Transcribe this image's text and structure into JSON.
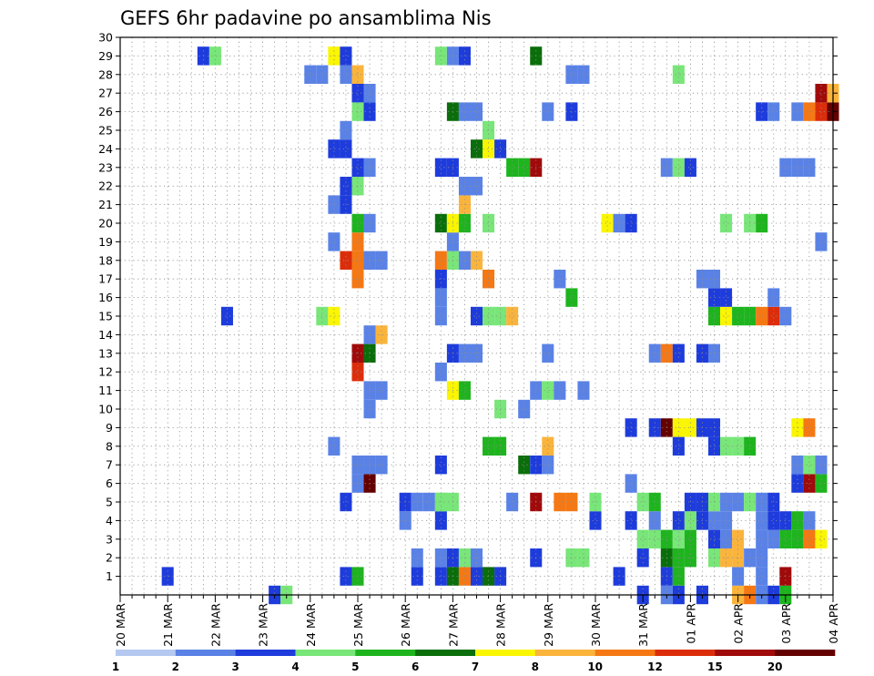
{
  "chart_data": {
    "type": "heatmap",
    "title": "GEFS 6hr padavine po ansamblima Nis",
    "xlabel": "",
    "ylabel": "",
    "x_tick_labels": [
      "20 MAR",
      "21 MAR",
      "22 MAR",
      "23 MAR",
      "24 MAR",
      "25 MAR",
      "26 MAR",
      "27 MAR",
      "28 MAR",
      "29 MAR",
      "30 MAR",
      "31 MAR",
      "01 APR",
      "02 APR",
      "03 APR",
      "04 APR"
    ],
    "y_tick_labels": [
      "1",
      "2",
      "3",
      "4",
      "5",
      "6",
      "7",
      "8",
      "9",
      "10",
      "11",
      "12",
      "13",
      "14",
      "15",
      "16",
      "17",
      "18",
      "19",
      "20",
      "21",
      "22",
      "23",
      "24",
      "25",
      "26",
      "27",
      "28",
      "29",
      "30"
    ],
    "x_range_steps": [
      0,
      60
    ],
    "y_range": [
      0,
      30
    ],
    "steps_per_day": 4,
    "grid": "dotted",
    "legend": {
      "placement": "bottom",
      "labels": [
        "1",
        "2",
        "3",
        "4",
        "5",
        "6",
        "7",
        "8",
        "10",
        "12",
        "15",
        "20"
      ],
      "colors": [
        "#b4c8f0",
        "#5a82e6",
        "#1e3cdc",
        "#78e678",
        "#1eb41e",
        "#0a6e0a",
        "#faf500",
        "#fab43c",
        "#f57814",
        "#dc2d0a",
        "#a00a0a",
        "#640000"
      ]
    },
    "cells": [
      [
        13,
        0,
        2
      ],
      [
        14,
        0,
        3
      ],
      [
        44,
        0,
        2
      ],
      [
        46,
        0,
        1
      ],
      [
        47,
        0,
        2
      ],
      [
        49,
        0,
        2
      ],
      [
        52,
        0,
        7
      ],
      [
        53,
        0,
        8
      ],
      [
        54,
        0,
        1
      ],
      [
        55,
        0,
        2
      ],
      [
        56,
        0,
        4
      ],
      [
        4,
        1,
        2
      ],
      [
        19,
        1,
        2
      ],
      [
        20,
        1,
        4
      ],
      [
        25,
        1,
        2
      ],
      [
        27,
        1,
        2
      ],
      [
        28,
        1,
        5
      ],
      [
        29,
        1,
        8
      ],
      [
        30,
        1,
        2
      ],
      [
        31,
        1,
        5
      ],
      [
        32,
        1,
        2
      ],
      [
        42,
        1,
        2
      ],
      [
        46,
        1,
        2
      ],
      [
        47,
        1,
        4
      ],
      [
        52,
        1,
        1
      ],
      [
        54,
        1,
        1
      ],
      [
        56,
        1,
        10
      ],
      [
        25,
        2,
        1
      ],
      [
        27,
        2,
        1
      ],
      [
        28,
        2,
        2
      ],
      [
        29,
        2,
        3
      ],
      [
        30,
        2,
        1
      ],
      [
        35,
        2,
        2
      ],
      [
        38,
        2,
        3
      ],
      [
        39,
        2,
        3
      ],
      [
        44,
        2,
        2
      ],
      [
        46,
        2,
        5
      ],
      [
        47,
        2,
        4
      ],
      [
        48,
        2,
        4
      ],
      [
        50,
        2,
        3
      ],
      [
        51,
        2,
        7
      ],
      [
        52,
        2,
        7
      ],
      [
        53,
        2,
        1
      ],
      [
        54,
        2,
        1
      ],
      [
        44,
        3,
        3
      ],
      [
        45,
        3,
        3
      ],
      [
        46,
        3,
        4
      ],
      [
        47,
        3,
        3
      ],
      [
        48,
        3,
        4
      ],
      [
        50,
        3,
        2
      ],
      [
        51,
        3,
        1
      ],
      [
        52,
        3,
        7
      ],
      [
        54,
        3,
        1
      ],
      [
        55,
        3,
        1
      ],
      [
        56,
        3,
        4
      ],
      [
        57,
        3,
        4
      ],
      [
        58,
        3,
        8
      ],
      [
        59,
        3,
        6
      ],
      [
        24,
        4,
        1
      ],
      [
        24,
        5,
        2
      ],
      [
        27,
        4,
        2
      ],
      [
        27,
        5,
        3
      ],
      [
        40,
        4,
        2
      ],
      [
        40,
        5,
        3
      ],
      [
        43,
        4,
        2
      ],
      [
        45,
        4,
        1
      ],
      [
        47,
        4,
        2
      ],
      [
        48,
        4,
        3
      ],
      [
        49,
        4,
        2
      ],
      [
        50,
        4,
        1
      ],
      [
        51,
        4,
        1
      ],
      [
        54,
        4,
        1
      ],
      [
        55,
        4,
        2
      ],
      [
        56,
        4,
        2
      ],
      [
        57,
        4,
        4
      ],
      [
        58,
        4,
        1
      ],
      [
        19,
        5,
        2
      ],
      [
        25,
        5,
        1
      ],
      [
        26,
        5,
        1
      ],
      [
        27,
        5,
        3
      ],
      [
        28,
        5,
        3
      ],
      [
        33,
        5,
        1
      ],
      [
        35,
        5,
        10
      ],
      [
        37,
        5,
        8
      ],
      [
        38,
        5,
        8
      ],
      [
        44,
        5,
        3
      ],
      [
        45,
        5,
        4
      ],
      [
        48,
        5,
        2
      ],
      [
        49,
        5,
        2
      ],
      [
        50,
        5,
        3
      ],
      [
        51,
        5,
        1
      ],
      [
        52,
        5,
        1
      ],
      [
        53,
        5,
        3
      ],
      [
        54,
        5,
        1
      ],
      [
        55,
        5,
        2
      ],
      [
        20,
        6,
        1
      ],
      [
        21,
        6,
        11
      ],
      [
        43,
        6,
        1
      ],
      [
        59,
        6,
        4
      ],
      [
        58,
        6,
        10
      ],
      [
        57,
        6,
        2
      ],
      [
        20,
        7,
        1
      ],
      [
        21,
        7,
        1
      ],
      [
        22,
        7,
        1
      ],
      [
        27,
        7,
        2
      ],
      [
        34,
        7,
        5
      ],
      [
        35,
        7,
        2
      ],
      [
        36,
        7,
        1
      ],
      [
        57,
        7,
        1
      ],
      [
        58,
        7,
        3
      ],
      [
        59,
        7,
        1
      ],
      [
        18,
        8,
        1
      ],
      [
        31,
        8,
        4
      ],
      [
        32,
        8,
        4
      ],
      [
        36,
        8,
        7
      ],
      [
        47,
        8,
        2
      ],
      [
        50,
        8,
        2
      ],
      [
        51,
        8,
        3
      ],
      [
        52,
        8,
        3
      ],
      [
        53,
        8,
        4
      ],
      [
        43,
        9,
        2
      ],
      [
        45,
        9,
        2
      ],
      [
        46,
        9,
        11
      ],
      [
        47,
        9,
        6
      ],
      [
        48,
        9,
        6
      ],
      [
        49,
        9,
        2
      ],
      [
        50,
        9,
        2
      ],
      [
        57,
        9,
        6
      ],
      [
        58,
        9,
        8
      ],
      [
        21,
        10,
        1
      ],
      [
        32,
        10,
        3
      ],
      [
        34,
        10,
        1
      ],
      [
        21,
        11,
        1
      ],
      [
        22,
        11,
        1
      ],
      [
        28,
        11,
        6
      ],
      [
        29,
        11,
        4
      ],
      [
        35,
        11,
        1
      ],
      [
        36,
        11,
        3
      ],
      [
        37,
        11,
        1
      ],
      [
        39,
        11,
        1
      ],
      [
        20,
        12,
        9
      ],
      [
        27,
        12,
        1
      ],
      [
        20,
        13,
        10
      ],
      [
        21,
        13,
        5
      ],
      [
        28,
        13,
        2
      ],
      [
        29,
        13,
        1
      ],
      [
        30,
        13,
        1
      ],
      [
        36,
        13,
        1
      ],
      [
        45,
        13,
        1
      ],
      [
        46,
        13,
        8
      ],
      [
        47,
        13,
        2
      ],
      [
        49,
        13,
        2
      ],
      [
        50,
        13,
        1
      ],
      [
        21,
        14,
        1
      ],
      [
        22,
        14,
        7
      ],
      [
        9,
        15,
        2
      ],
      [
        17,
        15,
        3
      ],
      [
        18,
        15,
        6
      ],
      [
        27,
        15,
        1
      ],
      [
        30,
        15,
        2
      ],
      [
        31,
        15,
        3
      ],
      [
        32,
        15,
        3
      ],
      [
        33,
        15,
        7
      ],
      [
        50,
        15,
        4
      ],
      [
        51,
        15,
        6
      ],
      [
        52,
        15,
        4
      ],
      [
        53,
        15,
        4
      ],
      [
        54,
        15,
        8
      ],
      [
        55,
        15,
        9
      ],
      [
        56,
        15,
        1
      ],
      [
        27,
        16,
        1
      ],
      [
        38,
        16,
        4
      ],
      [
        50,
        16,
        2
      ],
      [
        51,
        16,
        2
      ],
      [
        55,
        16,
        1
      ],
      [
        20,
        17,
        8
      ],
      [
        27,
        17,
        2
      ],
      [
        31,
        17,
        8
      ],
      [
        37,
        17,
        1
      ],
      [
        49,
        17,
        1
      ],
      [
        50,
        17,
        1
      ],
      [
        19,
        18,
        9
      ],
      [
        20,
        18,
        8
      ],
      [
        21,
        18,
        1
      ],
      [
        22,
        18,
        1
      ],
      [
        27,
        18,
        8
      ],
      [
        28,
        18,
        3
      ],
      [
        29,
        18,
        1
      ],
      [
        30,
        18,
        7
      ],
      [
        18,
        19,
        1
      ],
      [
        20,
        19,
        8
      ],
      [
        28,
        19,
        1
      ],
      [
        59,
        19,
        1
      ],
      [
        20,
        20,
        4
      ],
      [
        21,
        20,
        1
      ],
      [
        27,
        20,
        5
      ],
      [
        28,
        20,
        6
      ],
      [
        29,
        20,
        4
      ],
      [
        31,
        20,
        3
      ],
      [
        41,
        20,
        6
      ],
      [
        42,
        20,
        1
      ],
      [
        43,
        20,
        2
      ],
      [
        51,
        20,
        3
      ],
      [
        53,
        20,
        3
      ],
      [
        54,
        20,
        4
      ],
      [
        18,
        21,
        1
      ],
      [
        19,
        21,
        2
      ],
      [
        29,
        21,
        7
      ],
      [
        19,
        22,
        2
      ],
      [
        20,
        22,
        3
      ],
      [
        29,
        22,
        1
      ],
      [
        30,
        22,
        1
      ],
      [
        20,
        23,
        2
      ],
      [
        21,
        23,
        1
      ],
      [
        27,
        23,
        2
      ],
      [
        28,
        23,
        2
      ],
      [
        33,
        23,
        4
      ],
      [
        34,
        23,
        4
      ],
      [
        35,
        23,
        10
      ],
      [
        46,
        23,
        1
      ],
      [
        47,
        23,
        3
      ],
      [
        48,
        23,
        2
      ],
      [
        56,
        23,
        1
      ],
      [
        57,
        23,
        1
      ],
      [
        58,
        23,
        1
      ],
      [
        18,
        24,
        2
      ],
      [
        19,
        24,
        2
      ],
      [
        30,
        24,
        5
      ],
      [
        31,
        24,
        6
      ],
      [
        32,
        24,
        2
      ],
      [
        19,
        25,
        1
      ],
      [
        31,
        25,
        3
      ],
      [
        20,
        26,
        3
      ],
      [
        21,
        26,
        2
      ],
      [
        28,
        26,
        5
      ],
      [
        29,
        26,
        1
      ],
      [
        30,
        26,
        1
      ],
      [
        36,
        26,
        1
      ],
      [
        38,
        26,
        2
      ],
      [
        54,
        26,
        2
      ],
      [
        55,
        26,
        1
      ],
      [
        57,
        26,
        1
      ],
      [
        58,
        26,
        8
      ],
      [
        59,
        26,
        9
      ],
      [
        60,
        26,
        11
      ],
      [
        20,
        27,
        2
      ],
      [
        21,
        27,
        1
      ],
      [
        59,
        27,
        10
      ],
      [
        60,
        27,
        7
      ],
      [
        16,
        28,
        1
      ],
      [
        17,
        28,
        1
      ],
      [
        19,
        28,
        1
      ],
      [
        20,
        28,
        7
      ],
      [
        38,
        28,
        1
      ],
      [
        39,
        28,
        1
      ],
      [
        47,
        28,
        3
      ],
      [
        7,
        29,
        2
      ],
      [
        8,
        29,
        3
      ],
      [
        18,
        29,
        6
      ],
      [
        19,
        29,
        2
      ],
      [
        27,
        29,
        3
      ],
      [
        28,
        29,
        1
      ],
      [
        29,
        29,
        2
      ],
      [
        35,
        29,
        5
      ]
    ]
  }
}
